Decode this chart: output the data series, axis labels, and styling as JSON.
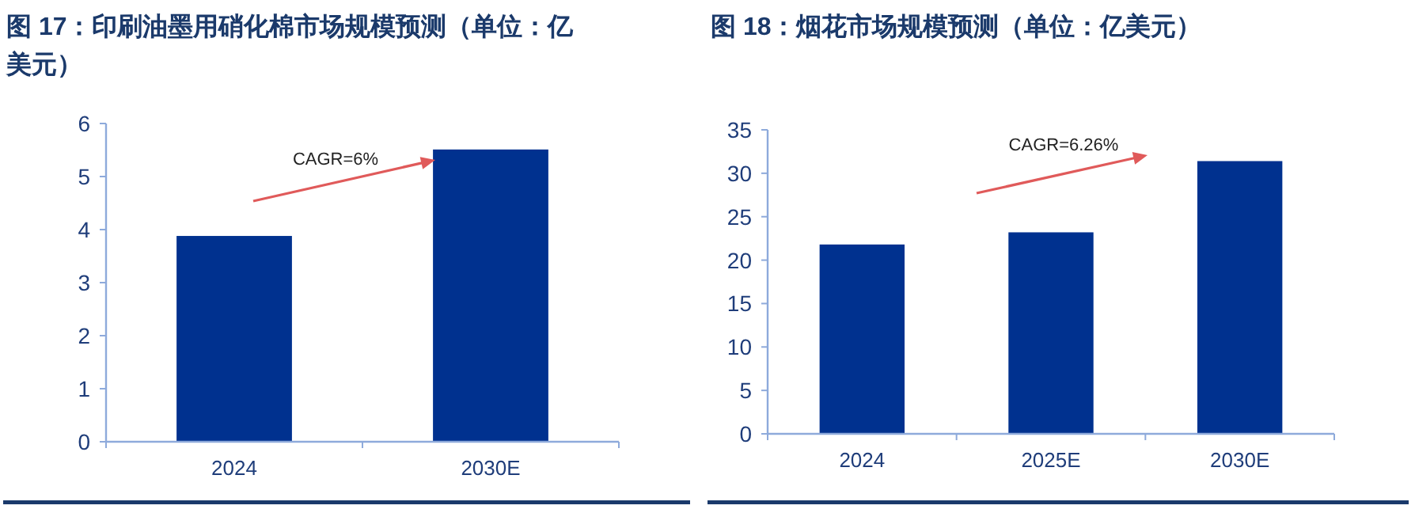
{
  "chart_data": [
    {
      "type": "bar",
      "title": "图 17：印刷油墨用硝化棉市场规模预测（单位：亿美元）",
      "categories": [
        "2024",
        "2030E"
      ],
      "values": [
        3.88,
        5.51
      ],
      "color": "#00318f",
      "ylim": [
        0,
        6
      ],
      "yticks": [
        0,
        1,
        2,
        3,
        4,
        5,
        6
      ],
      "annotations": [
        "CAGR=6%"
      ]
    },
    {
      "type": "bar",
      "title": "图 18：烟花市场规模预测（单位：亿美元）",
      "categories": [
        "2024",
        "2025E",
        "2030E"
      ],
      "values": [
        21.8,
        23.2,
        31.4
      ],
      "color": "#00318f",
      "ylim": [
        0,
        35
      ],
      "yticks": [
        0,
        5,
        10,
        15,
        20,
        25,
        30,
        35
      ],
      "annotations": [
        "CAGR=6.26%"
      ]
    }
  ]
}
